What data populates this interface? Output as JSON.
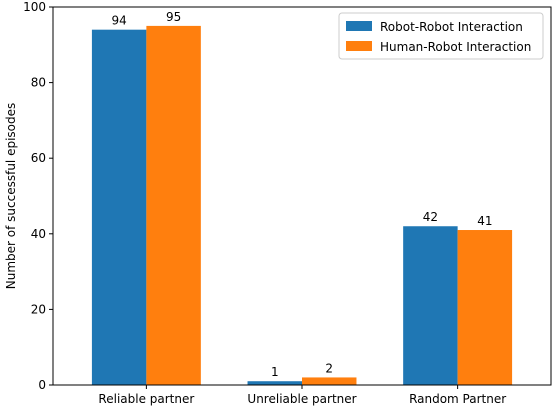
{
  "chart_data": {
    "type": "bar",
    "categories": [
      "Reliable partner",
      "Unreliable partner",
      "Random Partner"
    ],
    "series": [
      {
        "name": "Robot-Robot Interaction",
        "values": [
          94,
          1,
          42
        ],
        "color": "#1f77b4"
      },
      {
        "name": "Human-Robot Interaction",
        "values": [
          95,
          2,
          41
        ],
        "color": "#ff7f0e"
      }
    ],
    "ylabel": "Number of successful episodes",
    "xlabel": "",
    "ylim": [
      0,
      100
    ],
    "yticks": [
      0,
      20,
      40,
      60,
      80,
      100
    ],
    "grid": false,
    "legend_position": "top-right"
  }
}
